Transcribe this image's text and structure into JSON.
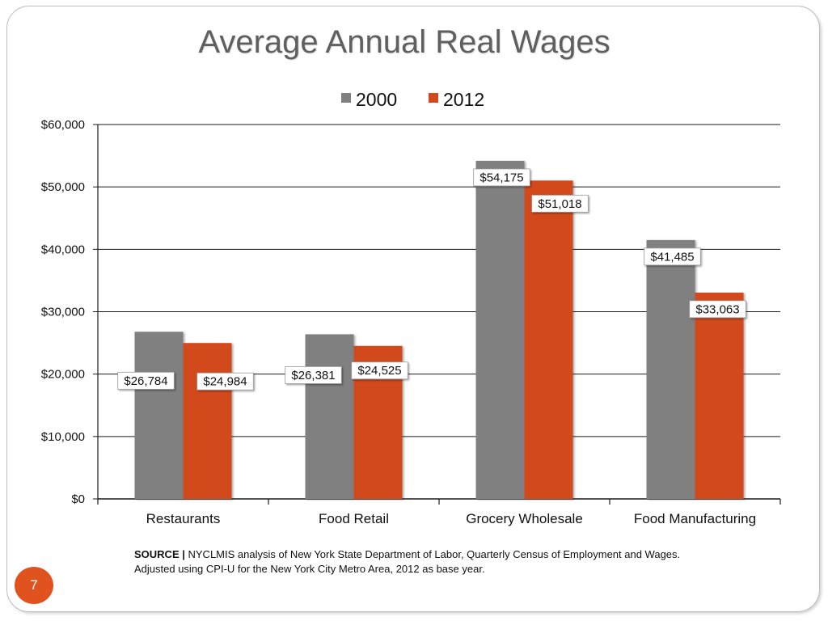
{
  "slide": {
    "page_number": "7"
  },
  "source": {
    "label": "SOURCE |",
    "line1": "NYCLMIS analysis of New York State Department of Labor, Quarterly Census of Employment and Wages.",
    "line2": "Adjusted using CPI-U for the New York City Metro Area, 2012 as base year."
  },
  "colors": {
    "series_2000": "#808080",
    "series_2012": "#d2491a",
    "gridline": "#1a1a1a",
    "label_text": "#111111"
  },
  "chart_data": {
    "type": "bar",
    "title": "Average Annual Real Wages",
    "categories": [
      "Restaurants",
      "Food Retail",
      "Grocery Wholesale",
      "Food Manufacturing"
    ],
    "series": [
      {
        "name": "2000",
        "values": [
          26784,
          26381,
          54175,
          41485
        ],
        "data_labels": [
          "$26,784",
          "$26,381",
          "$54,175",
          "$41,485"
        ]
      },
      {
        "name": "2012",
        "values": [
          24984,
          24525,
          51018,
          33063
        ],
        "data_labels": [
          "$24,984",
          "$24,525",
          "$51,018",
          "$33,063"
        ]
      }
    ],
    "y_ticks": [
      0,
      10000,
      20000,
      30000,
      40000,
      50000,
      60000
    ],
    "y_tick_labels": [
      "$0",
      "$10,000",
      "$20,000",
      "$30,000",
      "$40,000",
      "$50,000",
      "$60,000"
    ],
    "ylim": [
      0,
      60000
    ],
    "xlabel": "",
    "ylabel": "",
    "grid": true,
    "legend_position": "top-center"
  }
}
